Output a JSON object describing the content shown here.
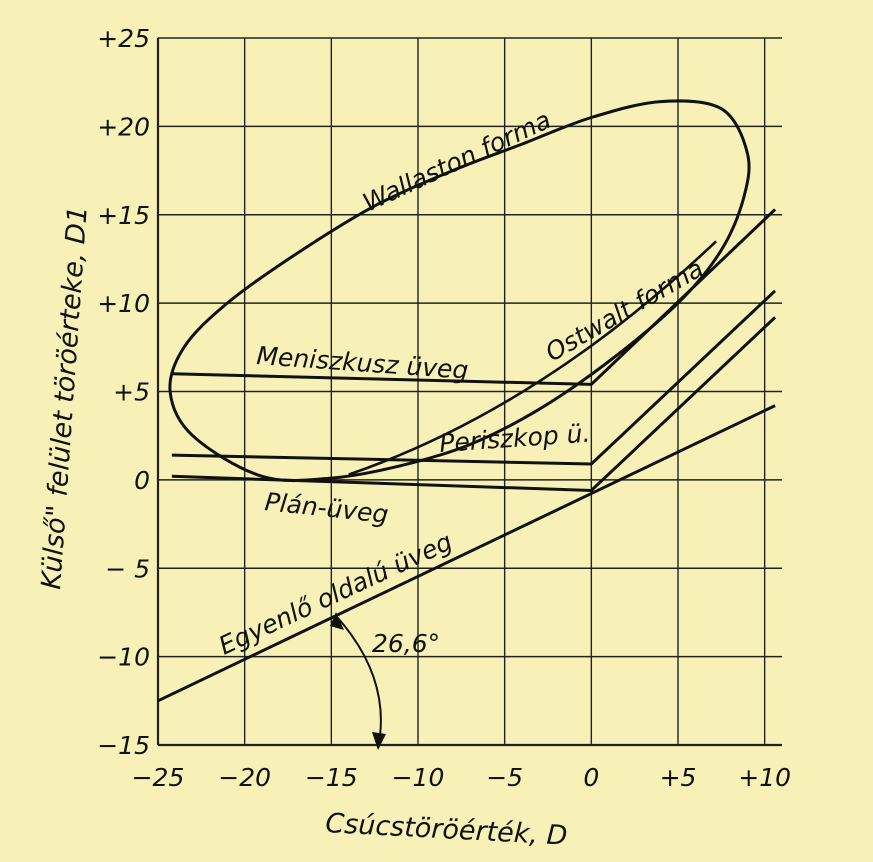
{
  "chart_data": {
    "type": "line",
    "xlabel": "Csúcstöröérték, D",
    "ylabel": "Külső\" felület töröérteke, D1",
    "xlim": [
      -25,
      11
    ],
    "ylim": [
      -15,
      25
    ],
    "x_ticks": [
      {
        "value": -25,
        "label": "−25"
      },
      {
        "value": -20,
        "label": "−20"
      },
      {
        "value": -15,
        "label": "−15"
      },
      {
        "value": -10,
        "label": "−10"
      },
      {
        "value": -5,
        "label": "−5"
      },
      {
        "value": 0,
        "label": "0"
      },
      {
        "value": 5,
        "label": "+5"
      },
      {
        "value": 10,
        "label": "+10"
      }
    ],
    "y_ticks": [
      {
        "value": 25,
        "label": "+25"
      },
      {
        "value": 20,
        "label": "+20"
      },
      {
        "value": 15,
        "label": "+15"
      },
      {
        "value": 10,
        "label": "+10"
      },
      {
        "value": 5,
        "label": "+5"
      },
      {
        "value": 0,
        "label": "0"
      },
      {
        "value": -5,
        "label": "− 5"
      },
      {
        "value": -10,
        "label": "−10"
      },
      {
        "value": -15,
        "label": "−15"
      }
    ],
    "grid": true,
    "series": [
      {
        "name": "Wallaston forma",
        "closed": true,
        "x": [
          -19,
          -23,
          -24.3,
          -23.5,
          -21,
          -17,
          -12.5,
          -8,
          -4,
          0,
          4,
          7.5,
          9,
          8.8,
          7.5,
          5,
          1,
          -3,
          -7,
          -11,
          -15,
          -19
        ],
        "y": [
          0.2,
          2.5,
          5,
          7.5,
          10,
          12.8,
          15.5,
          17.5,
          19,
          20.5,
          21.4,
          21,
          18.5,
          16,
          13,
          10,
          6.7,
          4,
          2,
          0.8,
          0.1,
          0.2
        ]
      },
      {
        "name": "Meniszkusz üveg",
        "x": [
          -24.2,
          0,
          10.6
        ],
        "y": [
          6,
          5.4,
          15.3
        ]
      },
      {
        "name": "Periszkop ü.",
        "x": [
          -24.2,
          0,
          10.6
        ],
        "y": [
          1.4,
          0.9,
          10.7
        ]
      },
      {
        "name": "Plán-üveg",
        "x": [
          -24.2,
          0,
          10.6
        ],
        "y": [
          0.2,
          -0.6,
          9.2
        ]
      },
      {
        "name": "Egyenlő oldalú üveg",
        "x": [
          -25,
          10.6
        ],
        "y": [
          -12.5,
          4.2
        ]
      }
    ],
    "annotations": [
      {
        "text": "Ostwalt forma"
      },
      {
        "text": "26,6°"
      }
    ]
  }
}
